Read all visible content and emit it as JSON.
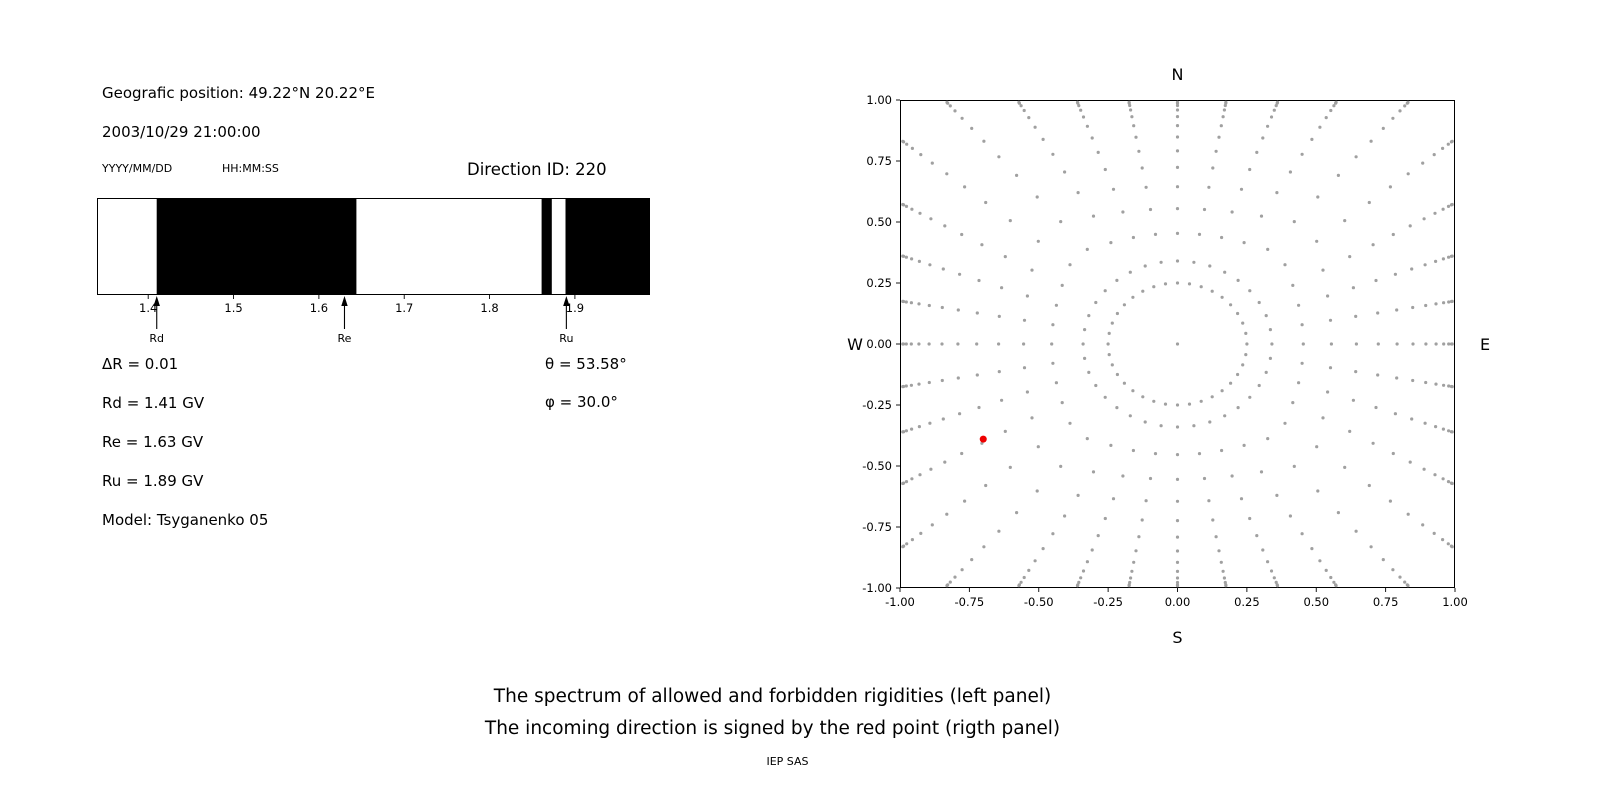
{
  "colors": {
    "background": "#ffffff",
    "foreground": "#000000",
    "band_black": "#000000",
    "dot_gray": "#a0a0a0",
    "red_point": "#ee0000"
  },
  "left_panel": {
    "geo_position": "Geografic position: 49.22°N 20.22°E",
    "datetime": "2003/10/29 21:00:00",
    "date_format_label": "YYYY/MM/DD",
    "time_format_label": "HH:MM:SS",
    "direction_id": "Direction ID: 220",
    "delta_r": "ΔR = 0.01",
    "rd": "Rd = 1.41 GV",
    "re": "Re = 1.63 GV",
    "ru": "Ru = 1.89 GV",
    "model": "Model: Tsyganenko 05",
    "theta": "θ = 53.58°",
    "phi": "φ = 30.0°"
  },
  "captions": {
    "line1": "The spectrum of allowed and forbidden rigidities (left panel)",
    "line2": "The incoming direction is signed by the red point (rigth panel)",
    "credit": "IEP SAS"
  },
  "chart_data": [
    {
      "id": "rigidity-spectrum",
      "type": "bar",
      "panel": "left",
      "xlim": [
        1.34,
        1.988
      ],
      "x_tick_values": [
        1.4,
        1.5,
        1.6,
        1.7,
        1.8,
        1.9
      ],
      "x_tick_labels": [
        "1.4",
        "1.5",
        "1.6",
        "1.7",
        "1.8",
        "1.9"
      ],
      "forbidden_bands_gv": [
        [
          1.41,
          1.644
        ],
        [
          1.861,
          1.873
        ],
        [
          1.889,
          1.988
        ]
      ],
      "markers": [
        {
          "label": "Rd",
          "value_gv": 1.41
        },
        {
          "label": "Re",
          "value_gv": 1.63
        },
        {
          "label": "Ru",
          "value_gv": 1.89
        }
      ],
      "delta_r_gv": 0.01
    },
    {
      "id": "incoming-direction-map",
      "type": "scatter",
      "panel": "right",
      "xlim": [
        -1.0,
        1.0
      ],
      "ylim": [
        -1.0,
        1.0
      ],
      "x_tick_values": [
        -1.0,
        -0.75,
        -0.5,
        -0.25,
        0,
        0.25,
        0.5,
        0.75,
        1.0
      ],
      "x_tick_labels": [
        "-1.00",
        "-0.75",
        "-0.50",
        "-0.25",
        "0.00",
        "0.25",
        "0.50",
        "0.75",
        "1.00"
      ],
      "y_tick_values": [
        1.0,
        0.75,
        0.5,
        0.25,
        0,
        -0.25,
        -0.5,
        -0.75,
        -1.0
      ],
      "y_tick_labels": [
        "1.00",
        "0.75",
        "0.50",
        "0.25",
        "0.00",
        "-0.25",
        "-0.50",
        "-0.75",
        "-1.00"
      ],
      "compass": {
        "top": "N",
        "bottom": "S",
        "left": "W",
        "right": "E"
      },
      "red_point": {
        "x": -0.7,
        "y": -0.39
      },
      "gray_pattern": {
        "spoke_count": 36,
        "spoke_angle_step_deg": 10,
        "spoke_inner_radius": 0.34,
        "points_per_spoke": 13,
        "edge_clip": 0.99,
        "inner_ring_radius": 0.25,
        "inner_ring_points": 36,
        "center_point": true
      },
      "grid": false
    }
  ]
}
